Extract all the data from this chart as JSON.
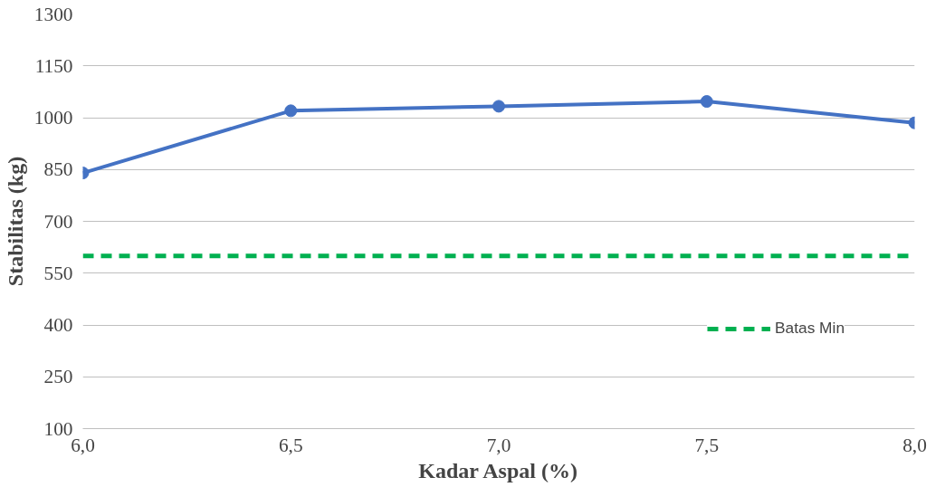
{
  "chart_data": {
    "type": "line",
    "xlabel": "Kadar Aspal (%)",
    "ylabel": "Stabilitas (kg)",
    "x": [
      6.0,
      6.5,
      7.0,
      7.5,
      8.0
    ],
    "series": [
      {
        "color": "#4472c4",
        "values": [
          840,
          1020,
          1033,
          1047,
          985
        ]
      }
    ],
    "marker": "circle",
    "line_style": "solid",
    "xlim": [
      6.0,
      8.0
    ],
    "xticks": [
      {
        "value": 6.0,
        "label": "6,0"
      },
      {
        "value": 6.5,
        "label": "6,5"
      },
      {
        "value": 7.0,
        "label": "7,0"
      },
      {
        "value": 7.5,
        "label": "7,5"
      },
      {
        "value": 8.0,
        "label": "8,0"
      }
    ],
    "ylim": [
      100,
      1300
    ],
    "yticks": [
      100,
      250,
      400,
      550,
      700,
      850,
      1000,
      1150,
      1300
    ],
    "grid": "y",
    "legend": "right",
    "ref_lines": [
      {
        "axis": "y",
        "value": 600,
        "label": "Batas Min",
        "color": "#00b050",
        "line_style": "dashed"
      }
    ]
  }
}
